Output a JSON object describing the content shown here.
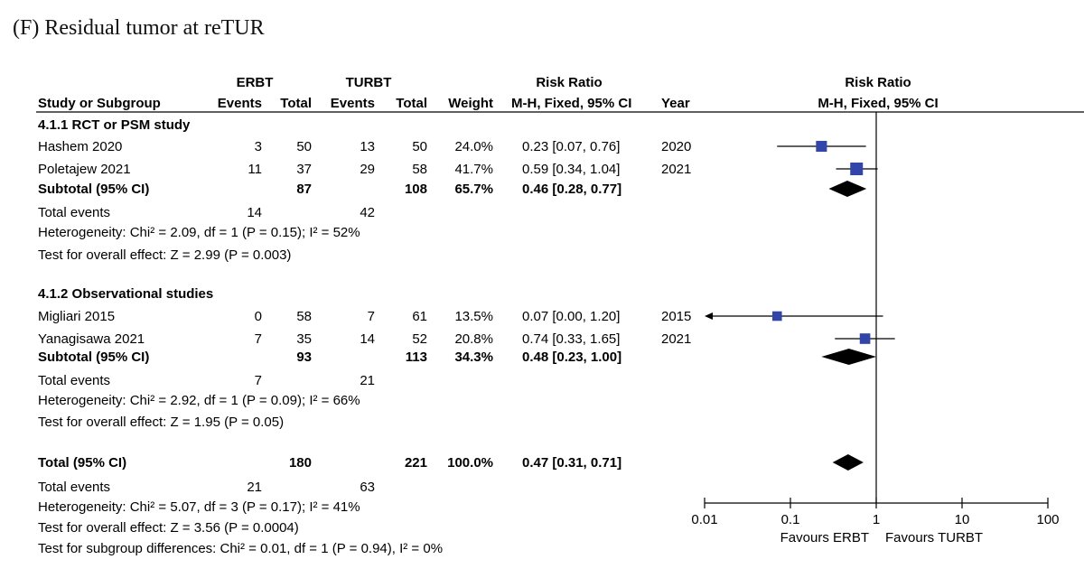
{
  "panel_label": "(F) Residual tumor at reTUR",
  "header": {
    "erbt": "ERBT",
    "turbt": "TURBT",
    "risk_ratio": "Risk Ratio",
    "study": "Study or Subgroup",
    "events": "Events",
    "total": "Total",
    "weight": "Weight",
    "method": "M-H, Fixed, 95% CI",
    "year": "Year"
  },
  "chart_data": {
    "type": "forest",
    "title": "(F) Residual tumor at reTUR",
    "measure": "Risk Ratio",
    "method": "M-H, Fixed, 95% CI",
    "xscale": "log",
    "xlim": [
      0.01,
      100
    ],
    "x_ticks": [
      "0.01",
      "0.1",
      "1",
      "10",
      "100"
    ],
    "null_value": 1,
    "favours_left": "Favours ERBT",
    "favours_right": "Favours TURBT",
    "subgroups": [
      {
        "title": "4.1.1 RCT or PSM study",
        "studies": [
          {
            "name": "Hashem 2020",
            "e1": "3",
            "n1": "50",
            "e2": "13",
            "n2": "50",
            "weight": "24.0%",
            "ci_text": "0.23 [0.07, 0.76]",
            "year": "2020",
            "rr": 0.23,
            "lo": 0.07,
            "hi": 0.76,
            "w": 24.0
          },
          {
            "name": "Poletajew 2021",
            "e1": "11",
            "n1": "37",
            "e2": "29",
            "n2": "58",
            "weight": "41.7%",
            "ci_text": "0.59 [0.34, 1.04]",
            "year": "2021",
            "rr": 0.59,
            "lo": 0.34,
            "hi": 1.04,
            "w": 41.7
          }
        ],
        "subtotal": {
          "label": "Subtotal (95% CI)",
          "n1": "87",
          "n2": "108",
          "weight": "65.7%",
          "ci_text": "0.46 [0.28, 0.77]",
          "rr": 0.46,
          "lo": 0.28,
          "hi": 0.77
        },
        "total_events": {
          "label": "Total events",
          "e1": "14",
          "e2": "42"
        },
        "heterogeneity": "Heterogeneity: Chi² = 2.09, df = 1 (P = 0.15); I² = 52%",
        "overall": "Test for overall effect: Z = 2.99 (P = 0.003)"
      },
      {
        "title": "4.1.2 Observational studies",
        "studies": [
          {
            "name": "Migliari 2015",
            "e1": "0",
            "n1": "58",
            "e2": "7",
            "n2": "61",
            "weight": "13.5%",
            "ci_text": "0.07 [0.00, 1.20]",
            "year": "2015",
            "rr": 0.07,
            "lo": 0.004,
            "hi": 1.2,
            "w": 13.5
          },
          {
            "name": "Yanagisawa 2021",
            "e1": "7",
            "n1": "35",
            "e2": "14",
            "n2": "52",
            "weight": "20.8%",
            "ci_text": "0.74 [0.33, 1.65]",
            "year": "2021",
            "rr": 0.74,
            "lo": 0.33,
            "hi": 1.65,
            "w": 20.8
          }
        ],
        "subtotal": {
          "label": "Subtotal (95% CI)",
          "n1": "93",
          "n2": "113",
          "weight": "34.3%",
          "ci_text": "0.48 [0.23, 1.00]",
          "rr": 0.48,
          "lo": 0.23,
          "hi": 1.0
        },
        "total_events": {
          "label": "Total events",
          "e1": "7",
          "e2": "21"
        },
        "heterogeneity": "Heterogeneity: Chi² = 2.92, df = 1 (P = 0.09); I² = 66%",
        "overall": "Test for overall effect: Z = 1.95 (P = 0.05)"
      }
    ],
    "total": {
      "label": "Total (95% CI)",
      "n1": "180",
      "n2": "221",
      "weight": "100.0%",
      "ci_text": "0.47 [0.31, 0.71]",
      "rr": 0.47,
      "lo": 0.31,
      "hi": 0.71
    },
    "total_events": {
      "label": "Total events",
      "e1": "21",
      "e2": "63"
    },
    "heterogeneity": "Heterogeneity: Chi² = 5.07, df = 3 (P = 0.17); I² = 41%",
    "overall": "Test for overall effect: Z = 3.56 (P = 0.0004)",
    "subgroup_differences": "Test for subgroup differences: Chi² = 0.01, df = 1 (P = 0.94), I² = 0%",
    "colors": {
      "marker": "#3245a8",
      "diamond": "#000000",
      "line": "#000000"
    }
  }
}
